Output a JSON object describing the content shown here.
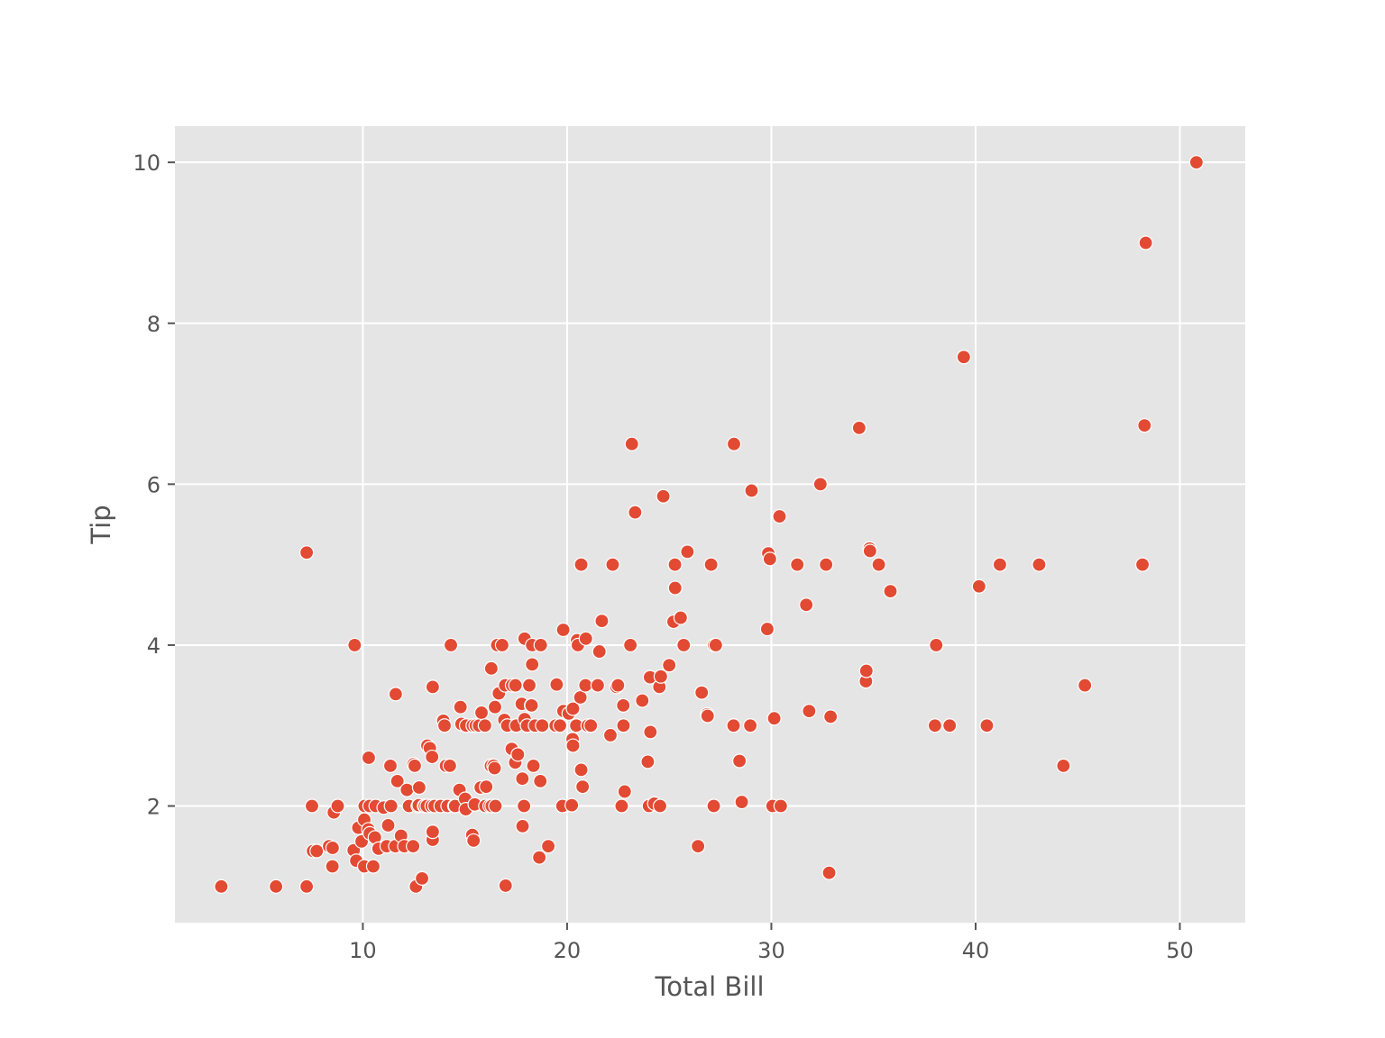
{
  "chart_data": {
    "type": "scatter",
    "title": "",
    "xlabel": "Total Bill",
    "ylabel": "Tip",
    "xlim": [
      0.8,
      53.2
    ],
    "ylim": [
      0.55,
      10.45
    ],
    "xticks": [
      10,
      20,
      30,
      40,
      50
    ],
    "yticks": [
      2,
      4,
      6,
      8,
      10
    ],
    "grid": true,
    "colors": {
      "background": "#e5e5e5",
      "grid": "#ffffff",
      "marker": "#e24a33",
      "marker_edge": "#ffffff",
      "text": "#555555"
    },
    "series": [
      {
        "points": [
          [
            3.07,
            1.0
          ],
          [
            5.75,
            1.0
          ],
          [
            7.25,
            1.0
          ],
          [
            7.25,
            5.15
          ],
          [
            7.51,
            2.0
          ],
          [
            7.56,
            1.44
          ],
          [
            7.74,
            1.44
          ],
          [
            8.35,
            1.5
          ],
          [
            8.51,
            1.25
          ],
          [
            8.52,
            1.48
          ],
          [
            8.58,
            1.92
          ],
          [
            8.77,
            2.0
          ],
          [
            9.55,
            1.45
          ],
          [
            9.6,
            4.0
          ],
          [
            9.68,
            1.32
          ],
          [
            9.78,
            1.73
          ],
          [
            9.94,
            1.56
          ],
          [
            10.07,
            1.83
          ],
          [
            10.07,
            1.25
          ],
          [
            10.09,
            2.0
          ],
          [
            10.27,
            1.71
          ],
          [
            10.29,
            2.6
          ],
          [
            10.33,
            2.0
          ],
          [
            10.34,
            1.66
          ],
          [
            10.51,
            1.25
          ],
          [
            10.59,
            1.61
          ],
          [
            10.63,
            2.0
          ],
          [
            10.77,
            1.47
          ],
          [
            11.02,
            1.98
          ],
          [
            11.17,
            1.5
          ],
          [
            11.24,
            1.76
          ],
          [
            11.35,
            2.5
          ],
          [
            11.38,
            2.0
          ],
          [
            11.59,
            1.5
          ],
          [
            11.61,
            3.39
          ],
          [
            11.69,
            2.31
          ],
          [
            11.87,
            1.63
          ],
          [
            12.03,
            1.5
          ],
          [
            12.16,
            2.2
          ],
          [
            12.26,
            2.0
          ],
          [
            12.46,
            1.5
          ],
          [
            12.48,
            2.52
          ],
          [
            12.54,
            2.5
          ],
          [
            12.6,
            1.0
          ],
          [
            12.69,
            2.0
          ],
          [
            12.74,
            2.01
          ],
          [
            12.76,
            2.23
          ],
          [
            12.9,
            1.1
          ],
          [
            13.0,
            2.0
          ],
          [
            13.03,
            2.0
          ],
          [
            13.13,
            2.0
          ],
          [
            13.16,
            2.75
          ],
          [
            13.28,
            2.72
          ],
          [
            13.37,
            2.0
          ],
          [
            13.39,
            2.61
          ],
          [
            13.42,
            1.58
          ],
          [
            13.42,
            1.68
          ],
          [
            13.42,
            3.48
          ],
          [
            13.51,
            2.0
          ],
          [
            13.81,
            2.0
          ],
          [
            13.94,
            3.06
          ],
          [
            14.0,
            3.0
          ],
          [
            14.07,
            2.5
          ],
          [
            14.15,
            2.0
          ],
          [
            14.26,
            2.5
          ],
          [
            14.31,
            4.0
          ],
          [
            14.48,
            2.0
          ],
          [
            14.52,
            2.0
          ],
          [
            14.73,
            2.2
          ],
          [
            14.78,
            3.23
          ],
          [
            14.83,
            3.02
          ],
          [
            15.01,
            2.09
          ],
          [
            15.04,
            1.96
          ],
          [
            15.06,
            3.0
          ],
          [
            15.36,
            1.64
          ],
          [
            15.38,
            3.0
          ],
          [
            15.42,
            1.57
          ],
          [
            15.48,
            2.02
          ],
          [
            15.53,
            3.0
          ],
          [
            15.69,
            3.0
          ],
          [
            15.77,
            2.23
          ],
          [
            15.81,
            3.16
          ],
          [
            15.98,
            3.0
          ],
          [
            16.0,
            2.0
          ],
          [
            16.04,
            2.24
          ],
          [
            16.21,
            2.0
          ],
          [
            16.27,
            2.5
          ],
          [
            16.29,
            3.71
          ],
          [
            16.31,
            2.0
          ],
          [
            16.4,
            2.5
          ],
          [
            16.45,
            2.47
          ],
          [
            16.47,
            3.23
          ],
          [
            16.49,
            2.0
          ],
          [
            16.58,
            4.0
          ],
          [
            16.66,
            3.4
          ],
          [
            16.82,
            4.0
          ],
          [
            16.93,
            3.07
          ],
          [
            16.97,
            3.5
          ],
          [
            16.99,
            1.01
          ],
          [
            17.07,
            3.0
          ],
          [
            17.29,
            2.71
          ],
          [
            17.31,
            3.5
          ],
          [
            17.46,
            2.54
          ],
          [
            17.47,
            3.5
          ],
          [
            17.51,
            3.0
          ],
          [
            17.59,
            2.64
          ],
          [
            17.78,
            3.27
          ],
          [
            17.81,
            2.34
          ],
          [
            17.82,
            1.75
          ],
          [
            17.89,
            2.0
          ],
          [
            17.92,
            4.08
          ],
          [
            17.92,
            3.08
          ],
          [
            18.04,
            3.0
          ],
          [
            18.15,
            3.5
          ],
          [
            18.24,
            3.25
          ],
          [
            18.26,
            3.25
          ],
          [
            18.29,
            3.76
          ],
          [
            18.29,
            4.0
          ],
          [
            18.35,
            2.5
          ],
          [
            18.43,
            3.0
          ],
          [
            18.64,
            1.36
          ],
          [
            18.69,
            2.31
          ],
          [
            18.71,
            4.0
          ],
          [
            18.78,
            3.0
          ],
          [
            19.08,
            1.5
          ],
          [
            19.44,
            3.0
          ],
          [
            19.49,
            3.51
          ],
          [
            19.65,
            3.0
          ],
          [
            19.77,
            2.0
          ],
          [
            19.81,
            4.19
          ],
          [
            19.82,
            3.18
          ],
          [
            20.08,
            3.15
          ],
          [
            20.23,
            2.01
          ],
          [
            20.27,
            2.83
          ],
          [
            20.29,
            2.75
          ],
          [
            20.29,
            3.21
          ],
          [
            20.45,
            3.0
          ],
          [
            20.49,
            4.06
          ],
          [
            20.53,
            4.0
          ],
          [
            20.65,
            3.35
          ],
          [
            20.69,
            2.45
          ],
          [
            20.69,
            5.0
          ],
          [
            20.76,
            2.24
          ],
          [
            20.9,
            3.5
          ],
          [
            20.92,
            4.08
          ],
          [
            21.01,
            3.0
          ],
          [
            21.16,
            3.0
          ],
          [
            21.5,
            3.5
          ],
          [
            21.58,
            3.92
          ],
          [
            21.7,
            4.3
          ],
          [
            22.12,
            2.88
          ],
          [
            22.23,
            5.0
          ],
          [
            22.42,
            3.48
          ],
          [
            22.49,
            3.5
          ],
          [
            22.67,
            2.0
          ],
          [
            22.75,
            3.25
          ],
          [
            22.76,
            3.0
          ],
          [
            22.82,
            2.18
          ],
          [
            23.1,
            4.0
          ],
          [
            23.17,
            6.5
          ],
          [
            23.33,
            5.65
          ],
          [
            23.68,
            3.31
          ],
          [
            23.95,
            2.55
          ],
          [
            24.01,
            2.0
          ],
          [
            24.06,
            3.6
          ],
          [
            24.08,
            2.92
          ],
          [
            24.27,
            2.03
          ],
          [
            24.52,
            3.48
          ],
          [
            24.55,
            2.0
          ],
          [
            24.59,
            3.61
          ],
          [
            24.71,
            5.85
          ],
          [
            25.0,
            3.75
          ],
          [
            25.21,
            4.29
          ],
          [
            25.28,
            5.0
          ],
          [
            25.29,
            4.71
          ],
          [
            25.56,
            4.34
          ],
          [
            25.71,
            4.0
          ],
          [
            25.89,
            5.16
          ],
          [
            26.41,
            1.5
          ],
          [
            26.59,
            3.41
          ],
          [
            26.86,
            3.14
          ],
          [
            26.88,
            3.12
          ],
          [
            27.05,
            5.0
          ],
          [
            27.18,
            2.0
          ],
          [
            27.2,
            4.0
          ],
          [
            27.28,
            4.0
          ],
          [
            28.15,
            3.0
          ],
          [
            28.17,
            6.5
          ],
          [
            28.44,
            2.56
          ],
          [
            28.55,
            2.05
          ],
          [
            28.97,
            3.0
          ],
          [
            29.03,
            5.92
          ],
          [
            29.8,
            4.2
          ],
          [
            29.85,
            5.14
          ],
          [
            29.93,
            5.07
          ],
          [
            30.06,
            2.0
          ],
          [
            30.14,
            3.09
          ],
          [
            30.4,
            5.6
          ],
          [
            30.46,
            2.0
          ],
          [
            31.27,
            5.0
          ],
          [
            31.71,
            4.5
          ],
          [
            31.85,
            3.18
          ],
          [
            32.4,
            6.0
          ],
          [
            32.68,
            5.0
          ],
          [
            32.83,
            1.17
          ],
          [
            32.9,
            3.11
          ],
          [
            34.3,
            6.7
          ],
          [
            34.63,
            3.55
          ],
          [
            34.65,
            3.68
          ],
          [
            34.81,
            5.2
          ],
          [
            34.83,
            5.17
          ],
          [
            35.26,
            5.0
          ],
          [
            35.83,
            4.67
          ],
          [
            38.01,
            3.0
          ],
          [
            38.07,
            4.0
          ],
          [
            38.73,
            3.0
          ],
          [
            39.42,
            7.58
          ],
          [
            40.17,
            4.73
          ],
          [
            40.55,
            3.0
          ],
          [
            41.19,
            5.0
          ],
          [
            43.11,
            5.0
          ],
          [
            44.3,
            2.5
          ],
          [
            45.35,
            3.5
          ],
          [
            48.17,
            5.0
          ],
          [
            48.27,
            6.73
          ],
          [
            48.33,
            9.0
          ],
          [
            50.81,
            10.0
          ]
        ]
      }
    ]
  }
}
